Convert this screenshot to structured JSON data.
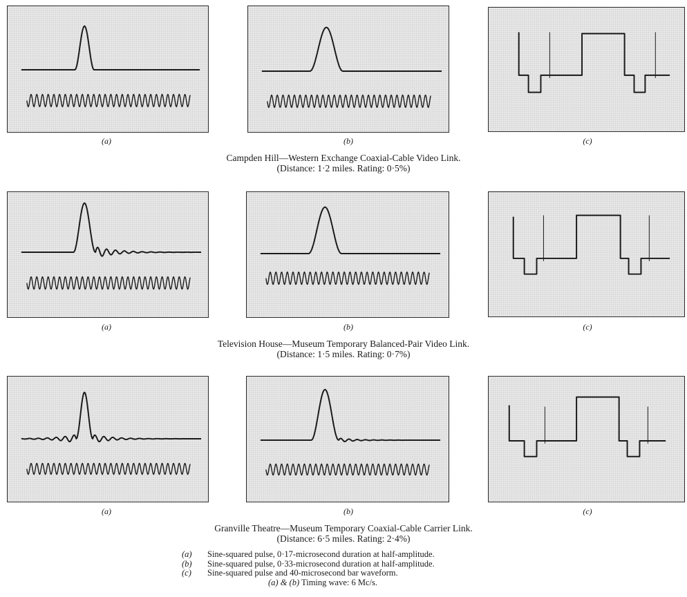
{
  "rows": [
    {
      "panel_labels": [
        "(a)",
        "(b)",
        "(c)"
      ],
      "title": "Campden Hill—Western Exchange Coaxial-Cable Video Link.",
      "subtitle": "(Distance: 1·2 miles.  Rating: 0·5%)"
    },
    {
      "panel_labels": [
        "(a)",
        "(b)",
        "(c)"
      ],
      "title": "Television House—Museum Temporary Balanced-Pair Video Link.",
      "subtitle": "(Distance: 1·5 miles.  Rating: 0·7%)"
    },
    {
      "panel_labels": [
        "(a)",
        "(b)",
        "(c)"
      ],
      "title": "Granville Theatre—Museum Temporary Coaxial-Cable Carrier Link.",
      "subtitle": "(Distance: 6·5 miles.  Rating: 2·4%)"
    }
  ],
  "legend": [
    {
      "key": "(a)",
      "text": "Sine-squared pulse, 0·17-microsecond duration at half-amplitude."
    },
    {
      "key": "(b)",
      "text": "Sine-squared pulse, 0·33-microsecond duration at half-amplitude."
    },
    {
      "key": "(c)",
      "text": "Sine-squared pulse and 40-microsecond bar waveform."
    }
  ],
  "timing_note_key": "(a) & (b)",
  "timing_note_text": "Timing wave: 6 Mc/s."
}
